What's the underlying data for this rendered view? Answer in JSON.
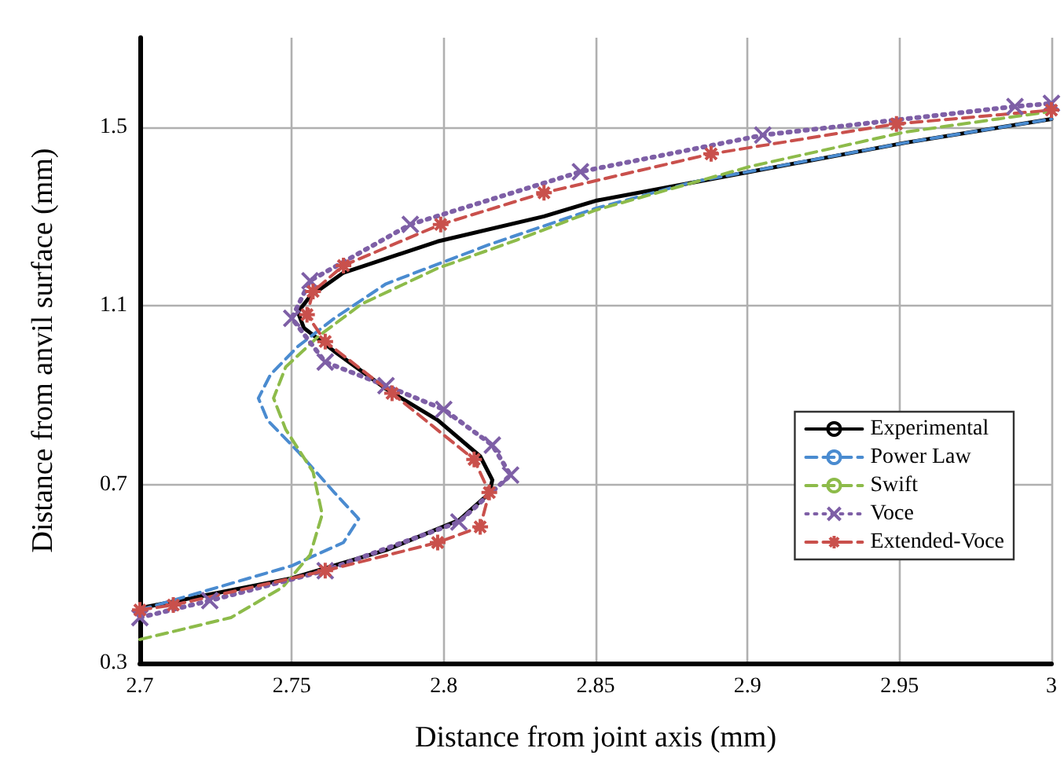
{
  "chart_data": {
    "type": "line",
    "xlabel": "Distance from joint axis (mm)",
    "ylabel": "Distance from anvil surface (mm)",
    "xlim": [
      2.7,
      3
    ],
    "xticks": [
      2.7,
      2.75,
      2.8,
      2.85,
      2.9,
      2.95,
      3
    ],
    "ylim": [
      0.3,
      1.7
    ],
    "yticks": [
      0.3,
      0.7,
      1.1,
      1.5
    ],
    "grid": true,
    "legend": "right",
    "series": [
      {
        "name": "Experimental",
        "color": "#000000",
        "line_style": "solid",
        "marker": "none",
        "x": [
          2.7,
          2.75,
          2.781,
          2.805,
          2.815,
          2.816,
          2.812,
          2.798,
          2.781,
          2.764,
          2.754,
          2.752,
          2.756,
          2.767,
          2.798,
          2.833,
          2.85,
          2.901,
          2.952,
          3.0
        ],
        "values": [
          0.423,
          0.49,
          0.553,
          0.62,
          0.68,
          0.71,
          0.763,
          0.844,
          0.914,
          0.998,
          1.05,
          1.086,
          1.121,
          1.174,
          1.244,
          1.3,
          1.335,
          1.4,
          1.465,
          1.518
        ]
      },
      {
        "name": "Power Law",
        "color": "#4a8bd0",
        "line_style": "dashed",
        "marker": "none",
        "x": [
          2.7,
          2.75,
          2.767,
          2.772,
          2.764,
          2.752,
          2.742,
          2.739,
          2.743,
          2.752,
          2.764,
          2.781,
          2.815,
          2.85,
          2.882,
          2.952,
          3.0
        ],
        "values": [
          0.419,
          0.518,
          0.57,
          0.623,
          0.682,
          0.774,
          0.844,
          0.893,
          0.946,
          1.009,
          1.072,
          1.149,
          1.237,
          1.318,
          1.377,
          1.465,
          1.518
        ]
      },
      {
        "name": "Swift",
        "color": "#8dbb4a",
        "line_style": "dashed",
        "marker": "none",
        "x": [
          2.7,
          2.73,
          2.747,
          2.756,
          2.76,
          2.757,
          2.748,
          2.744,
          2.748,
          2.759,
          2.773,
          2.798,
          2.824,
          2.85,
          2.901,
          2.952,
          3.0
        ],
        "values": [
          0.353,
          0.402,
          0.47,
          0.542,
          0.633,
          0.728,
          0.823,
          0.893,
          0.963,
          1.033,
          1.104,
          1.184,
          1.247,
          1.314,
          1.412,
          1.489,
          1.535
        ]
      },
      {
        "name": "Voce",
        "color": "#7e5fa6",
        "line_style": "dotted",
        "marker": "cross",
        "x": [
          2.7,
          2.723,
          2.761,
          2.805,
          2.822,
          2.816,
          2.8,
          2.781,
          2.761,
          2.75,
          2.756,
          2.789,
          2.845,
          2.905,
          2.988,
          3.0
        ],
        "values": [
          0.402,
          0.44,
          0.507,
          0.616,
          0.721,
          0.788,
          0.868,
          0.921,
          0.974,
          1.072,
          1.156,
          1.282,
          1.4,
          1.482,
          1.546,
          1.553
        ]
      },
      {
        "name": "Extended-Voce",
        "color": "#c9504c",
        "line_style": "dashed",
        "marker": "star",
        "x": [
          2.7,
          2.711,
          2.761,
          2.798,
          2.812,
          2.815,
          2.81,
          2.783,
          2.761,
          2.755,
          2.757,
          2.767,
          2.799,
          2.833,
          2.888,
          2.949,
          3.0
        ],
        "values": [
          0.419,
          0.43,
          0.507,
          0.57,
          0.605,
          0.682,
          0.756,
          0.904,
          1.02,
          1.08,
          1.132,
          1.19,
          1.282,
          1.353,
          1.44,
          1.507,
          1.538
        ]
      }
    ]
  }
}
